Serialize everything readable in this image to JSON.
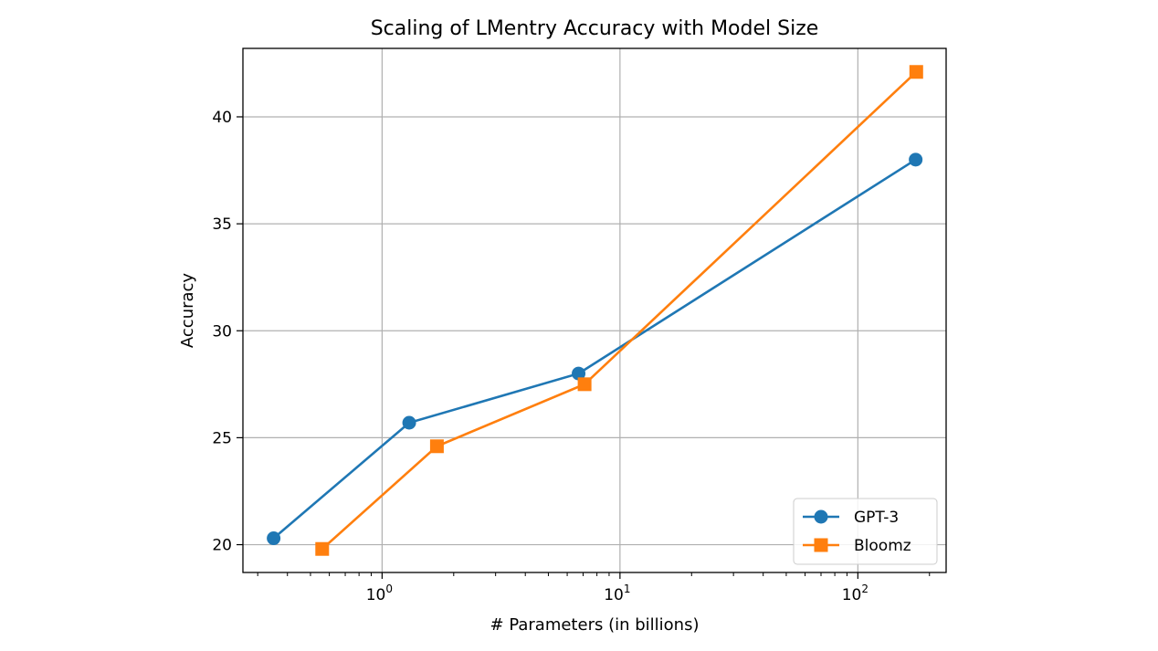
{
  "chart_data": {
    "type": "line",
    "title": "Scaling of LMentry Accuracy with Model Size",
    "xlabel": "# Parameters (in billions)",
    "ylabel": "Accuracy",
    "xscale": "log",
    "xlim": [
      0.26,
      235
    ],
    "ylim": [
      18.7,
      43.2
    ],
    "grid": true,
    "legend_position": "lower-right",
    "x_ticks": [
      {
        "value": 1,
        "base": "10",
        "exp": "0"
      },
      {
        "value": 10,
        "base": "10",
        "exp": "1"
      },
      {
        "value": 100,
        "base": "10",
        "exp": "2"
      }
    ],
    "y_ticks": [
      20,
      25,
      30,
      35,
      40
    ],
    "series": [
      {
        "name": "GPT-3",
        "color": "#1f77b4",
        "marker": "circle",
        "x": [
          0.35,
          1.3,
          6.7,
          175
        ],
        "y": [
          20.3,
          25.7,
          28.0,
          38.0
        ]
      },
      {
        "name": "Bloomz",
        "color": "#ff7f0e",
        "marker": "square",
        "x": [
          0.56,
          1.7,
          7.1,
          176
        ],
        "y": [
          19.8,
          24.6,
          27.5,
          42.1
        ]
      }
    ]
  }
}
